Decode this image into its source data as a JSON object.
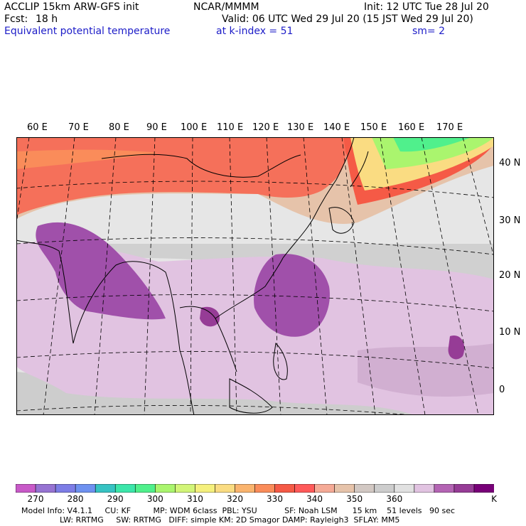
{
  "header": {
    "model": "ACCLIP 15km ARW-GFS init",
    "org": "NCAR/MMMM",
    "init": "Init: 12 UTC Tue 28 Jul 20",
    "fcst_label": "Fcst:",
    "fcst_value": "18 h",
    "valid": "Valid: 06 UTC Wed 29 Jul 20 (15 JST Wed 29 Jul 20)",
    "field": "Equivalent potential temperature",
    "level": "at k-index =  51",
    "smooth": "sm= 2"
  },
  "map": {
    "lon_labels": [
      "60 E",
      "70 E",
      "80 E",
      "90 E",
      "100 E",
      "110 E",
      "120 E",
      "130 E",
      "140 E",
      "150 E",
      "160 E",
      "170 E"
    ],
    "lat_labels": [
      "40 N",
      "30 N",
      "20 N",
      "10 N",
      "0"
    ]
  },
  "colorbar": {
    "colors": [
      "#c85ac8",
      "#9673d2",
      "#7d7de6",
      "#6e91f0",
      "#37c3c3",
      "#3ce6aa",
      "#50f08c",
      "#aaf56e",
      "#d2f578",
      "#f5f07d",
      "#fadc82",
      "#fab46e",
      "#fa8c5a",
      "#f55a46",
      "#ff5a5a",
      "#f5aa96",
      "#e6c3aa",
      "#d2c8c3",
      "#cdcdcd",
      "#e1e1e1",
      "#e1c3e1",
      "#b464b4",
      "#963c96",
      "#780078"
    ],
    "tick_labels": [
      "270",
      "280",
      "290",
      "300",
      "310",
      "320",
      "330",
      "340",
      "350",
      "360",
      "K"
    ]
  },
  "footer": {
    "line1": "Model Info: V4.1.1     CU: KF         MP: WDM 6class  PBL: YSU           SF: Noah LSM      15 km    51 levels   90 sec",
    "line2": "LW: RRTMG     SW: RRTMG   DIFF: simple KM: 2D Smagor DAMP: Rayleigh3  SFLAY: MM5"
  }
}
